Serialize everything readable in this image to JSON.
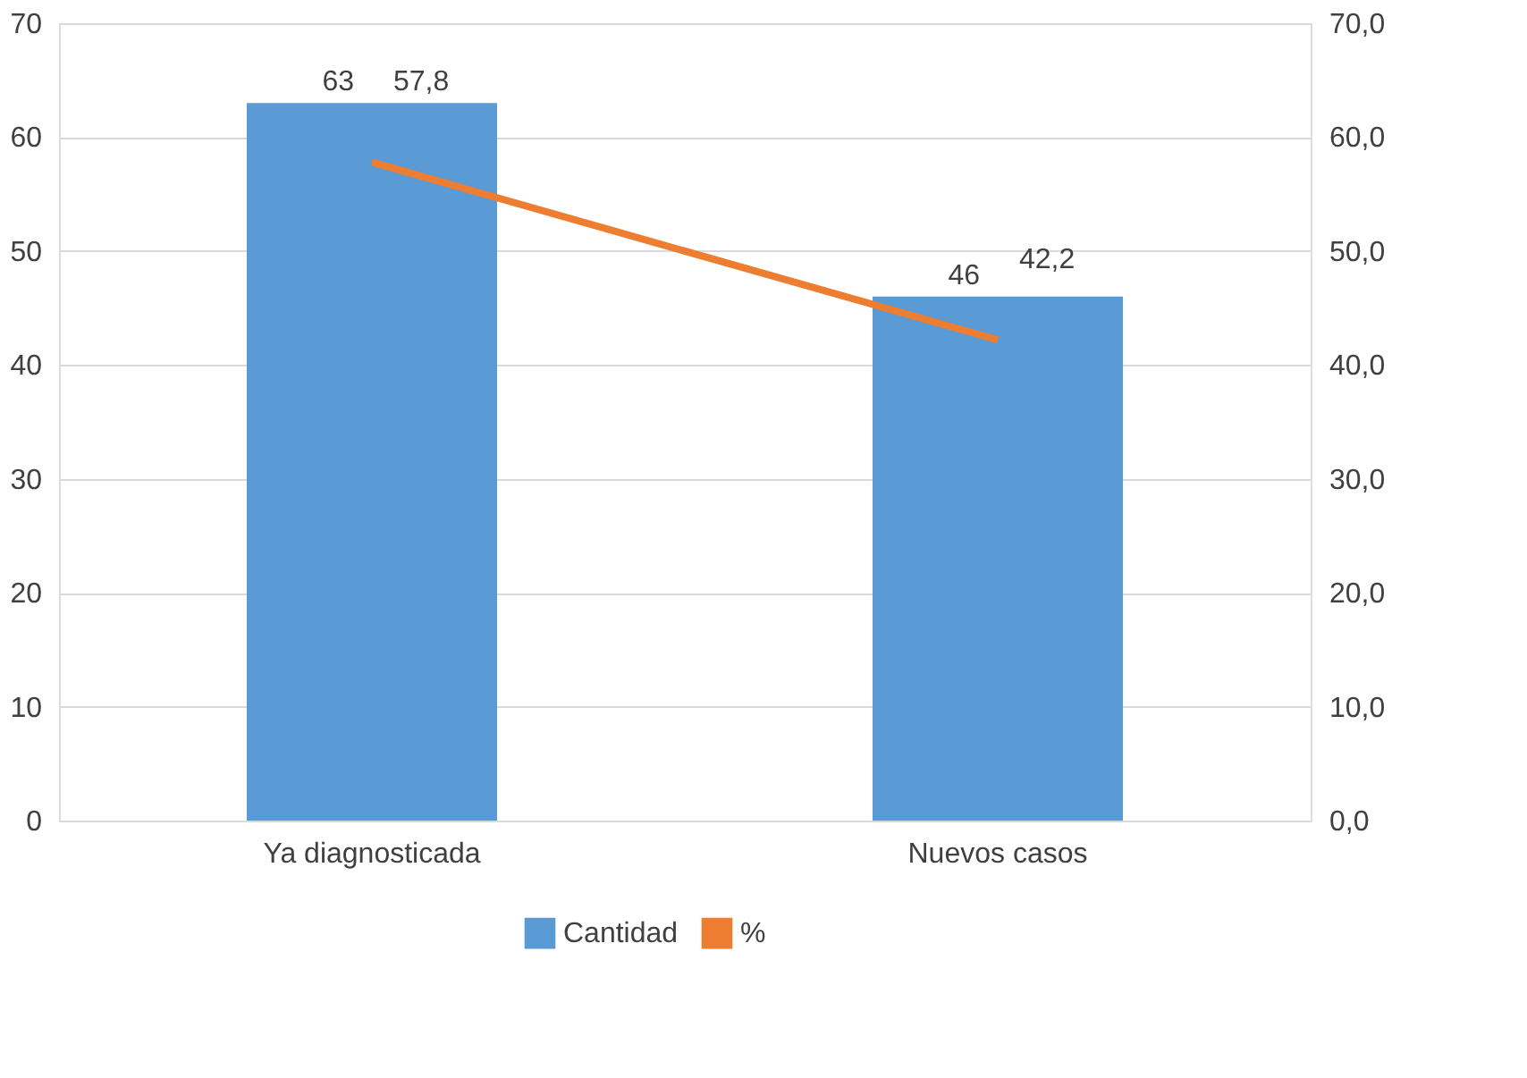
{
  "chart_data": {
    "type": "bar",
    "categories": [
      "Ya diagnosticada",
      "Nuevos casos"
    ],
    "series": [
      {
        "name": "Cantidad",
        "type": "bar",
        "color": "#5b9bd5",
        "values": [
          63,
          46
        ],
        "value_labels": [
          "63",
          "46"
        ]
      },
      {
        "name": "%",
        "type": "line",
        "axis": "y2",
        "color": "#ed7d31",
        "values": [
          57.8,
          42.2
        ],
        "value_labels": [
          "57,8",
          "42,2"
        ]
      }
    ],
    "ylim": [
      0,
      70
    ],
    "yticks": [
      0,
      10,
      20,
      30,
      40,
      50,
      60,
      70
    ],
    "y2lim": [
      0,
      70
    ],
    "y2ticks": [
      {
        "value": 0,
        "label": "0,0"
      },
      {
        "value": 10,
        "label": "10,0"
      },
      {
        "value": 20,
        "label": "20,0"
      },
      {
        "value": 30,
        "label": "30,0"
      },
      {
        "value": 40,
        "label": "40,0"
      },
      {
        "value": 50,
        "label": "50,0"
      },
      {
        "value": 60,
        "label": "60,0"
      },
      {
        "value": 70,
        "label": "70,0"
      }
    ],
    "grid": "y",
    "legend": "bottom",
    "marker": "none",
    "line_style": "solid"
  }
}
